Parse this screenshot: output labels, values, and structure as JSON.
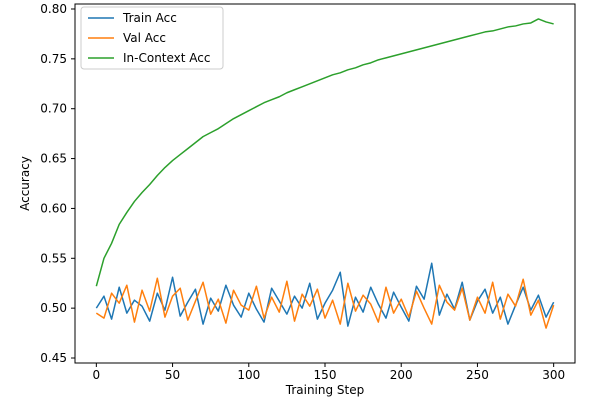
{
  "chart_data": {
    "type": "line",
    "title": "",
    "xlabel": "Training Step",
    "ylabel": "Accuracy",
    "xlim": [
      -14,
      314
    ],
    "ylim": [
      0.445,
      0.805
    ],
    "xticks": [
      0,
      50,
      100,
      150,
      200,
      250,
      300
    ],
    "yticks": [
      0.45,
      0.5,
      0.55,
      0.6,
      0.65,
      0.7,
      0.75,
      0.8
    ],
    "ytick_labels": [
      "0.45",
      "0.50",
      "0.55",
      "0.60",
      "0.65",
      "0.70",
      "0.75",
      "0.80"
    ],
    "legend_position": "top-left",
    "grid": false,
    "x": [
      0,
      5,
      10,
      15,
      20,
      25,
      30,
      35,
      40,
      45,
      50,
      55,
      60,
      65,
      70,
      75,
      80,
      85,
      90,
      95,
      100,
      105,
      110,
      115,
      120,
      125,
      130,
      135,
      140,
      145,
      150,
      155,
      160,
      165,
      170,
      175,
      180,
      185,
      190,
      195,
      200,
      205,
      210,
      215,
      220,
      225,
      230,
      235,
      240,
      245,
      250,
      255,
      260,
      265,
      270,
      275,
      280,
      285,
      290,
      295,
      300
    ],
    "series": [
      {
        "name": "Train Acc",
        "color": "#1f77b4",
        "values": [
          0.5,
          0.512,
          0.489,
          0.521,
          0.495,
          0.508,
          0.502,
          0.487,
          0.515,
          0.498,
          0.531,
          0.492,
          0.506,
          0.519,
          0.484,
          0.51,
          0.497,
          0.523,
          0.503,
          0.491,
          0.515,
          0.499,
          0.486,
          0.52,
          0.507,
          0.494,
          0.512,
          0.5,
          0.525,
          0.489,
          0.505,
          0.518,
          0.536,
          0.482,
          0.511,
          0.496,
          0.521,
          0.504,
          0.49,
          0.516,
          0.501,
          0.487,
          0.522,
          0.509,
          0.545,
          0.493,
          0.514,
          0.499,
          0.526,
          0.488,
          0.507,
          0.519,
          0.495,
          0.511,
          0.484,
          0.503,
          0.521,
          0.498,
          0.513,
          0.491,
          0.506
        ]
      },
      {
        "name": "Val Acc",
        "color": "#ff7f0e",
        "values": [
          0.495,
          0.49,
          0.515,
          0.505,
          0.523,
          0.486,
          0.518,
          0.497,
          0.53,
          0.491,
          0.512,
          0.52,
          0.488,
          0.507,
          0.526,
          0.494,
          0.509,
          0.485,
          0.518,
          0.503,
          0.498,
          0.522,
          0.49,
          0.511,
          0.496,
          0.527,
          0.487,
          0.514,
          0.502,
          0.519,
          0.49,
          0.508,
          0.484,
          0.525,
          0.497,
          0.513,
          0.504,
          0.486,
          0.521,
          0.495,
          0.509,
          0.491,
          0.517,
          0.5,
          0.484,
          0.523,
          0.506,
          0.498,
          0.52,
          0.488,
          0.511,
          0.495,
          0.526,
          0.489,
          0.514,
          0.502,
          0.529,
          0.493,
          0.508,
          0.48,
          0.503
        ]
      },
      {
        "name": "In-Context Acc",
        "color": "#2ca02c",
        "values": [
          0.522,
          0.55,
          0.565,
          0.584,
          0.596,
          0.607,
          0.616,
          0.624,
          0.633,
          0.641,
          0.648,
          0.654,
          0.66,
          0.666,
          0.672,
          0.676,
          0.68,
          0.685,
          0.69,
          0.694,
          0.698,
          0.702,
          0.706,
          0.709,
          0.712,
          0.716,
          0.719,
          0.722,
          0.725,
          0.728,
          0.731,
          0.734,
          0.736,
          0.739,
          0.741,
          0.744,
          0.746,
          0.749,
          0.751,
          0.753,
          0.755,
          0.757,
          0.759,
          0.761,
          0.763,
          0.765,
          0.767,
          0.769,
          0.771,
          0.773,
          0.775,
          0.777,
          0.778,
          0.78,
          0.782,
          0.783,
          0.785,
          0.786,
          0.79,
          0.787,
          0.785
        ]
      }
    ]
  }
}
